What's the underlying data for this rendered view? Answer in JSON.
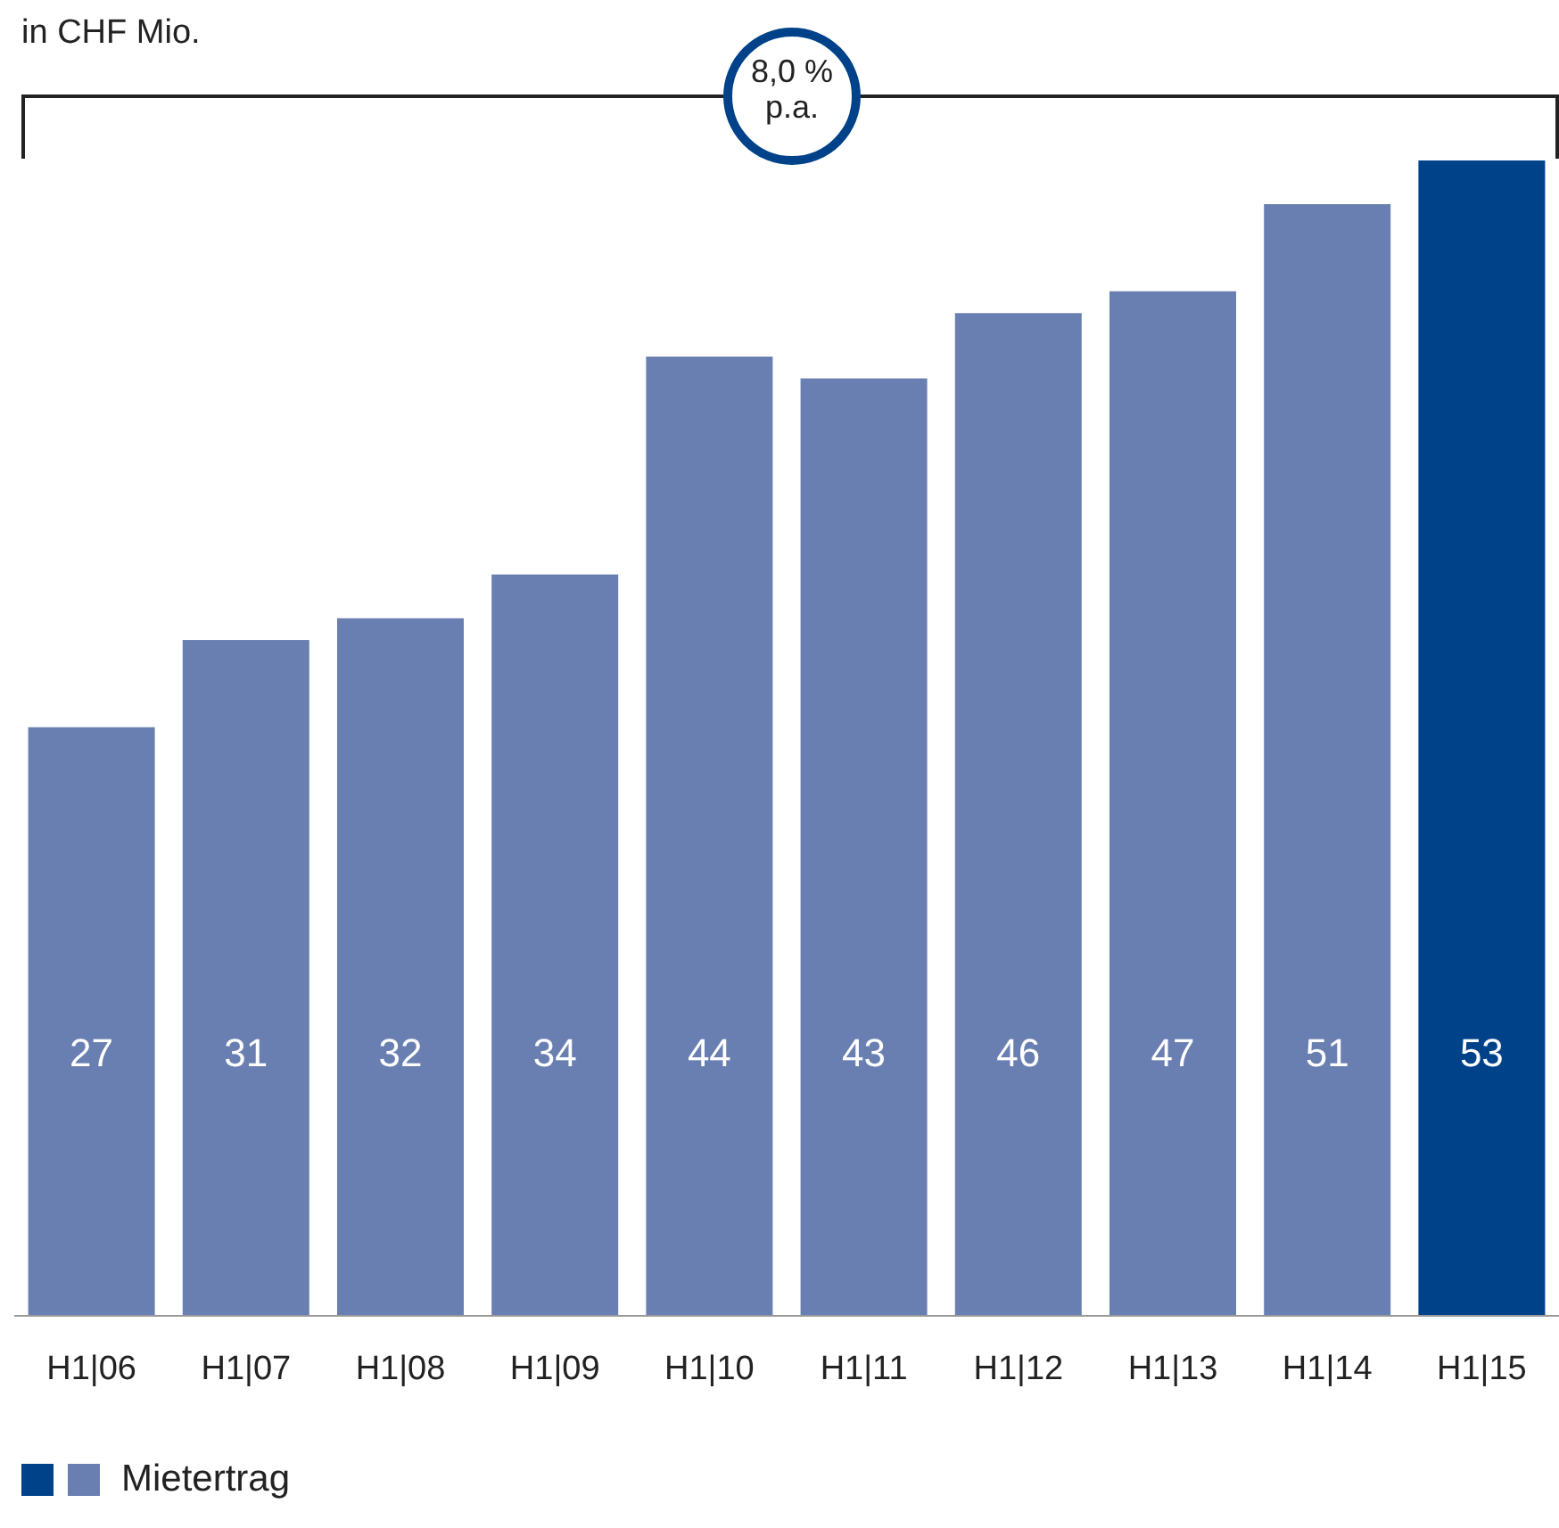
{
  "chart_data": {
    "type": "bar",
    "title": "in CHF Mio.",
    "categories": [
      "H1|06",
      "H1|07",
      "H1|08",
      "H1|09",
      "H1|10",
      "H1|11",
      "H1|12",
      "H1|13",
      "H1|14",
      "H1|15"
    ],
    "series": [
      {
        "name": "Mietertrag",
        "colors": [
          "#6a7fb1",
          "#6a7fb1",
          "#6a7fb1",
          "#6a7fb1",
          "#6a7fb1",
          "#6a7fb1",
          "#6a7fb1",
          "#6a7fb1",
          "#6a7fb1",
          "#00428a"
        ],
        "values": [
          27,
          31,
          32,
          34,
          44,
          43,
          46,
          47,
          51,
          53
        ]
      }
    ],
    "data_labels": true,
    "annotations": [
      "8,0 % p.a."
    ],
    "legend": "bottom left"
  }
}
